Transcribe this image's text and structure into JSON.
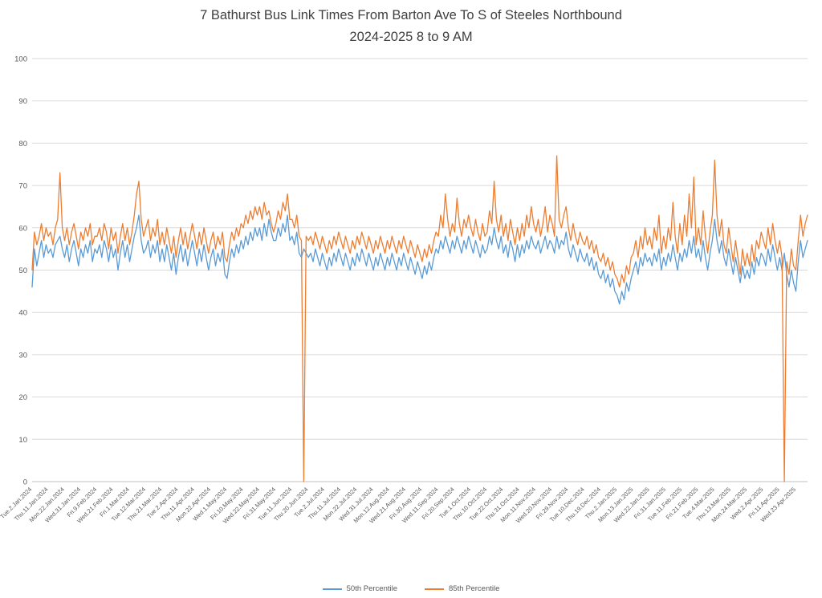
{
  "title": {
    "line1": "7 Bathurst Bus Link Times From Barton Ave To S of Steeles Northbound",
    "line2": "2024-2025 8 to 9 AM"
  },
  "chart_data": {
    "type": "line",
    "title": "7 Bathurst Bus Link Times From Barton Ave To S of Steeles Northbound 2024-2025 8 to 9 AM",
    "title_lines": [
      "7 Bathurst Bus Link Times From Barton Ave To S of Steeles Northbound",
      "2024-2025 8 to 9 AM"
    ],
    "xlabel": "",
    "ylabel": "",
    "ylim": [
      0,
      100
    ],
    "yticks": [
      0,
      10,
      20,
      30,
      40,
      50,
      60,
      70,
      80,
      90,
      100
    ],
    "grid": true,
    "legend_position": "bottom",
    "tick_every": 7,
    "x_tick_labels": [
      "Tue.2.Jan.2024",
      "Thu.11.Jan.2024",
      "Mon.22.Jan.2024",
      "Wed.31.Jan.2024",
      "Fri.9.Feb.2024",
      "Wed.21.Feb.2024",
      "Fri.1.Mar.2024",
      "Tue.12.Mar.2024",
      "Thu.21.Mar.2024",
      "Tue.2.Apr.2024",
      "Thu.11.Apr.2024",
      "Mon.22.Apr.2024",
      "Wed.1.May.2024",
      "Fri.10.May.2024",
      "Wed.22.May.2024",
      "Fri.31.May.2024",
      "Tue.11.Jun.2024",
      "Thu.20.Jun.2024",
      "Tue.2.Jul.2024",
      "Thu.11.Jul.2024",
      "Mon.22.Jul.2024",
      "Wed.31.Jul.2024",
      "Mon.12.Aug.2024",
      "Wed.21.Aug.2024",
      "Fri.30.Aug.2024",
      "Wed.11.Sep.2024",
      "Fri.20.Sep.2024",
      "Tue.1.Oct.2024",
      "Thu.10.Oct.2024",
      "Tue.22.Oct.2024",
      "Thu.31.Oct.2024",
      "Mon.11.Nov.2024",
      "Wed.20.Nov.2024",
      "Fri.29.Nov.2024",
      "Tue.10.Dec.2024",
      "Thu.19.Dec.2024",
      "Thu.2.Jan.2025",
      "Mon.13.Jan.2025",
      "Wed.22.Jan.2025",
      "Fri.31.Jan.2025",
      "Tue.11.Feb.2025",
      "Fri.21.Feb.2025",
      "Tue.4.Mar.2025",
      "Thu.13.Mar.2025",
      "Mon.24.Mar.2025",
      "Wed.2.Apr.2025",
      "Fri.11.Apr.2025",
      "Wed.23.Apr.2025"
    ],
    "series": [
      {
        "name": "50th Percentile",
        "color": "#5B9BD5",
        "values": [
          46,
          55,
          51,
          54,
          57,
          53,
          56,
          54,
          55,
          53,
          56,
          57,
          58,
          55,
          53,
          56,
          52,
          55,
          57,
          54,
          51,
          55,
          53,
          56,
          54,
          57,
          52,
          55,
          54,
          56,
          53,
          57,
          55,
          52,
          56,
          53,
          55,
          50,
          54,
          57,
          53,
          56,
          52,
          55,
          58,
          60,
          63,
          57,
          54,
          55,
          57,
          53,
          56,
          54,
          57,
          52,
          55,
          52,
          56,
          53,
          50,
          54,
          49,
          53,
          56,
          52,
          55,
          51,
          54,
          57,
          54,
          51,
          55,
          52,
          56,
          53,
          50,
          53,
          55,
          51,
          54,
          52,
          55,
          49,
          48,
          52,
          55,
          53,
          56,
          54,
          57,
          55,
          58,
          56,
          59,
          57,
          60,
          58,
          60,
          57,
          61,
          58,
          62,
          59,
          57,
          57,
          60,
          58,
          61,
          59,
          63,
          57,
          58,
          56,
          59,
          54,
          53,
          55,
          54,
          53,
          54,
          52,
          55,
          53,
          51,
          54,
          52,
          50,
          53,
          51,
          54,
          52,
          55,
          53,
          51,
          54,
          52,
          50,
          53,
          51,
          54,
          52,
          55,
          53,
          51,
          54,
          52,
          50,
          53,
          51,
          54,
          52,
          50,
          53,
          51,
          54,
          52,
          50,
          53,
          51,
          54,
          52,
          50,
          53,
          51,
          49,
          52,
          50,
          48,
          51,
          49,
          52,
          50,
          53,
          55,
          54,
          57,
          55,
          58,
          56,
          54,
          57,
          55,
          58,
          56,
          54,
          57,
          55,
          58,
          56,
          54,
          57,
          55,
          53,
          56,
          54,
          55,
          58,
          56,
          60,
          57,
          55,
          58,
          54,
          56,
          53,
          57,
          55,
          52,
          56,
          53,
          56,
          54,
          57,
          55,
          58,
          56,
          55,
          57,
          54,
          56,
          58,
          55,
          57,
          56,
          54,
          58,
          55,
          57,
          56,
          59,
          55,
          53,
          56,
          54,
          52,
          55,
          53,
          52,
          54,
          51,
          53,
          50,
          52,
          49,
          48,
          50,
          47,
          49,
          46,
          48,
          45,
          44,
          42,
          45,
          43,
          47,
          45,
          48,
          50,
          52,
          49,
          53,
          51,
          54,
          52,
          53,
          51,
          54,
          52,
          55,
          50,
          53,
          51,
          54,
          52,
          56,
          53,
          50,
          54,
          52,
          55,
          53,
          57,
          54,
          58,
          53,
          55,
          52,
          57,
          53,
          50,
          54,
          57,
          62,
          57,
          54,
          57,
          53,
          51,
          55,
          52,
          49,
          53,
          50,
          47,
          51,
          48,
          50,
          48,
          52,
          49,
          53,
          51,
          54,
          53,
          51,
          55,
          52,
          56,
          53,
          50,
          53,
          50,
          54,
          49,
          46,
          50,
          47,
          45,
          52,
          57,
          53,
          55,
          57
        ]
      },
      {
        "name": "85th Percentile",
        "color": "#ED7D31",
        "values": [
          50,
          59,
          56,
          58,
          61,
          57,
          60,
          58,
          59,
          56,
          60,
          62,
          73,
          60,
          57,
          60,
          56,
          59,
          61,
          58,
          55,
          59,
          57,
          60,
          58,
          61,
          56,
          58,
          58,
          60,
          57,
          61,
          59,
          55,
          60,
          57,
          59,
          54,
          58,
          61,
          57,
          60,
          56,
          59,
          63,
          68,
          71,
          62,
          58,
          60,
          62,
          57,
          60,
          58,
          62,
          56,
          59,
          56,
          60,
          57,
          54,
          58,
          53,
          57,
          60,
          56,
          59,
          55,
          58,
          61,
          58,
          55,
          59,
          56,
          60,
          57,
          54,
          57,
          59,
          55,
          58,
          56,
          59,
          53,
          52,
          56,
          59,
          57,
          60,
          58,
          61,
          60,
          63,
          61,
          64,
          62,
          65,
          63,
          65,
          62,
          66,
          63,
          64,
          61,
          59,
          61,
          64,
          62,
          66,
          64,
          68,
          62,
          62,
          60,
          63,
          58,
          57,
          0,
          58,
          57,
          58,
          56,
          59,
          57,
          55,
          58,
          56,
          54,
          57,
          55,
          58,
          56,
          59,
          57,
          55,
          58,
          56,
          54,
          57,
          55,
          58,
          56,
          59,
          57,
          55,
          58,
          56,
          54,
          57,
          55,
          58,
          56,
          54,
          57,
          55,
          58,
          56,
          54,
          57,
          55,
          58,
          56,
          54,
          57,
          55,
          53,
          56,
          54,
          52,
          55,
          53,
          56,
          54,
          57,
          59,
          58,
          63,
          60,
          68,
          62,
          58,
          61,
          59,
          67,
          61,
          58,
          62,
          60,
          63,
          60,
          58,
          62,
          59,
          57,
          61,
          58,
          59,
          64,
          61,
          71,
          62,
          59,
          63,
          58,
          61,
          57,
          62,
          59,
          56,
          60,
          57,
          61,
          58,
          63,
          60,
          65,
          61,
          59,
          62,
          58,
          61,
          65,
          59,
          63,
          61,
          58,
          77,
          62,
          60,
          63,
          65,
          60,
          57,
          61,
          58,
          56,
          59,
          57,
          56,
          58,
          55,
          57,
          54,
          56,
          53,
          52,
          54,
          51,
          53,
          50,
          52,
          49,
          48,
          46,
          49,
          47,
          51,
          49,
          53,
          54,
          57,
          53,
          58,
          55,
          60,
          56,
          58,
          55,
          60,
          57,
          63,
          54,
          58,
          55,
          60,
          57,
          66,
          58,
          54,
          61,
          56,
          63,
          58,
          68,
          60,
          72,
          56,
          60,
          56,
          64,
          58,
          54,
          59,
          63,
          76,
          63,
          58,
          62,
          56,
          54,
          60,
          56,
          52,
          57,
          53,
          49,
          55,
          51,
          54,
          51,
          56,
          52,
          57,
          55,
          59,
          57,
          55,
          60,
          56,
          61,
          57,
          54,
          57,
          53,
          0,
          52,
          49,
          55,
          51,
          50,
          57,
          63,
          58,
          61,
          63
        ]
      }
    ]
  },
  "colors": {
    "gridline": "#D9D9D9",
    "baseline": "#BFBFBF",
    "axis_text": "#595959",
    "title_text": "#404040"
  }
}
